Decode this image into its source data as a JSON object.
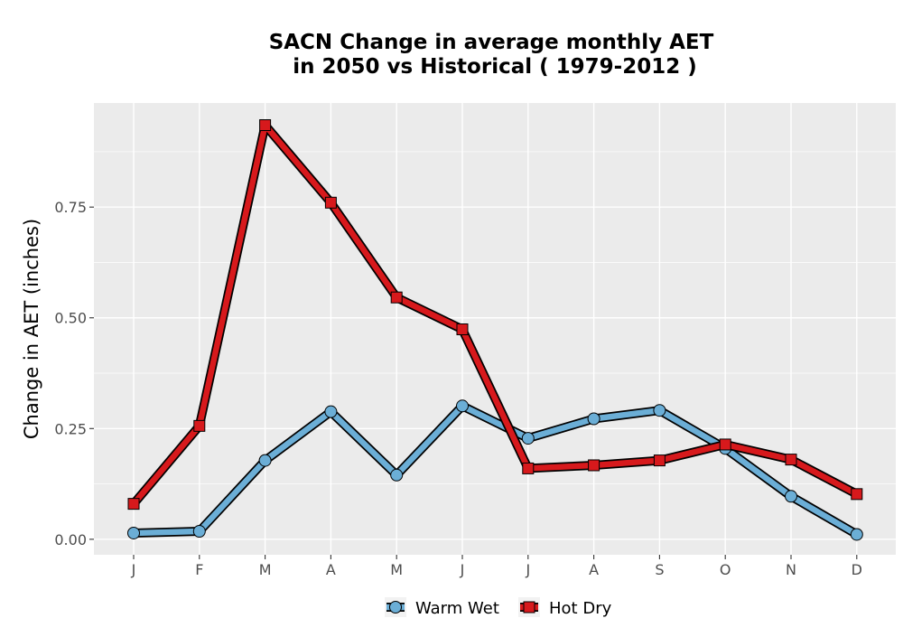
{
  "chart_data": {
    "type": "line",
    "title": "SACN  Change in average monthly AET",
    "subtitle": "in 2050 vs Historical ( 1979-2012 )",
    "xlabel": "",
    "ylabel": "Change in AET (inches)",
    "categories": [
      "J",
      "F",
      "M",
      "A",
      "M",
      "J",
      "J",
      "A",
      "S",
      "O",
      "N",
      "D"
    ],
    "ylim": [
      -0.035,
      0.985
    ],
    "yticks": [
      0.0,
      0.25,
      0.5,
      0.75
    ],
    "ytick_labels": [
      "0.00",
      "0.25",
      "0.50",
      "0.75"
    ],
    "grid": true,
    "legend_position": "bottom",
    "series": [
      {
        "name": "Warm Wet",
        "marker": "circle",
        "color": "#6baed6",
        "values": [
          0.014,
          0.018,
          0.178,
          0.288,
          0.145,
          0.301,
          0.228,
          0.272,
          0.291,
          0.205,
          0.097,
          0.011
        ]
      },
      {
        "name": "Hot Dry",
        "marker": "square",
        "color": "#d7191c",
        "values": [
          0.08,
          0.256,
          0.935,
          0.76,
          0.546,
          0.474,
          0.16,
          0.167,
          0.178,
          0.214,
          0.18,
          0.102
        ]
      }
    ]
  }
}
